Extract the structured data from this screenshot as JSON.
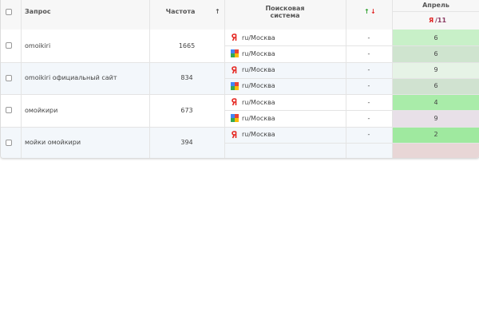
{
  "header": {
    "query": "Запрос",
    "frequency": "Частота",
    "sort_arrow": "↑",
    "engine": "Поисковая система",
    "change_up": "↑",
    "change_down": "↓",
    "month": "Апрель",
    "engine_code": "Я",
    "day": "/11"
  },
  "rows": [
    {
      "query": "omoikiri",
      "frequency": 1665,
      "background": "#ffffff",
      "results": [
        {
          "engine": "yandex",
          "region": "ru/Москва",
          "change": "-",
          "position": 6,
          "color": "#c8f0c8"
        },
        {
          "engine": "google",
          "region": "ru/Москва",
          "change": "-",
          "position": 6,
          "color": "#cfe4cf"
        }
      ]
    },
    {
      "query": "omoikiri официальный сайт",
      "frequency": 834,
      "background": "#f3f7fb",
      "results": [
        {
          "engine": "yandex",
          "region": "ru/Москва",
          "change": "-",
          "position": 9,
          "color": "#e6f3e6"
        },
        {
          "engine": "google",
          "region": "ru/Москва",
          "change": "-",
          "position": 6,
          "color": "#d0e2d0"
        }
      ]
    },
    {
      "query": "омойкири",
      "frequency": 673,
      "background": "#ffffff",
      "results": [
        {
          "engine": "yandex",
          "region": "ru/Москва",
          "change": "-",
          "position": 4,
          "color": "#a9eca9"
        },
        {
          "engine": "google",
          "region": "ru/Москва",
          "change": "-",
          "position": 9,
          "color": "#e8e0e8"
        }
      ]
    },
    {
      "query": "мойки омойкири",
      "frequency": 394,
      "background": "#f3f7fb",
      "results": [
        {
          "engine": "yandex",
          "region": "ru/Москва",
          "change": "-",
          "position": 2,
          "color": "#9fe99f"
        },
        {
          "color": "#e8d6d6"
        }
      ]
    }
  ]
}
